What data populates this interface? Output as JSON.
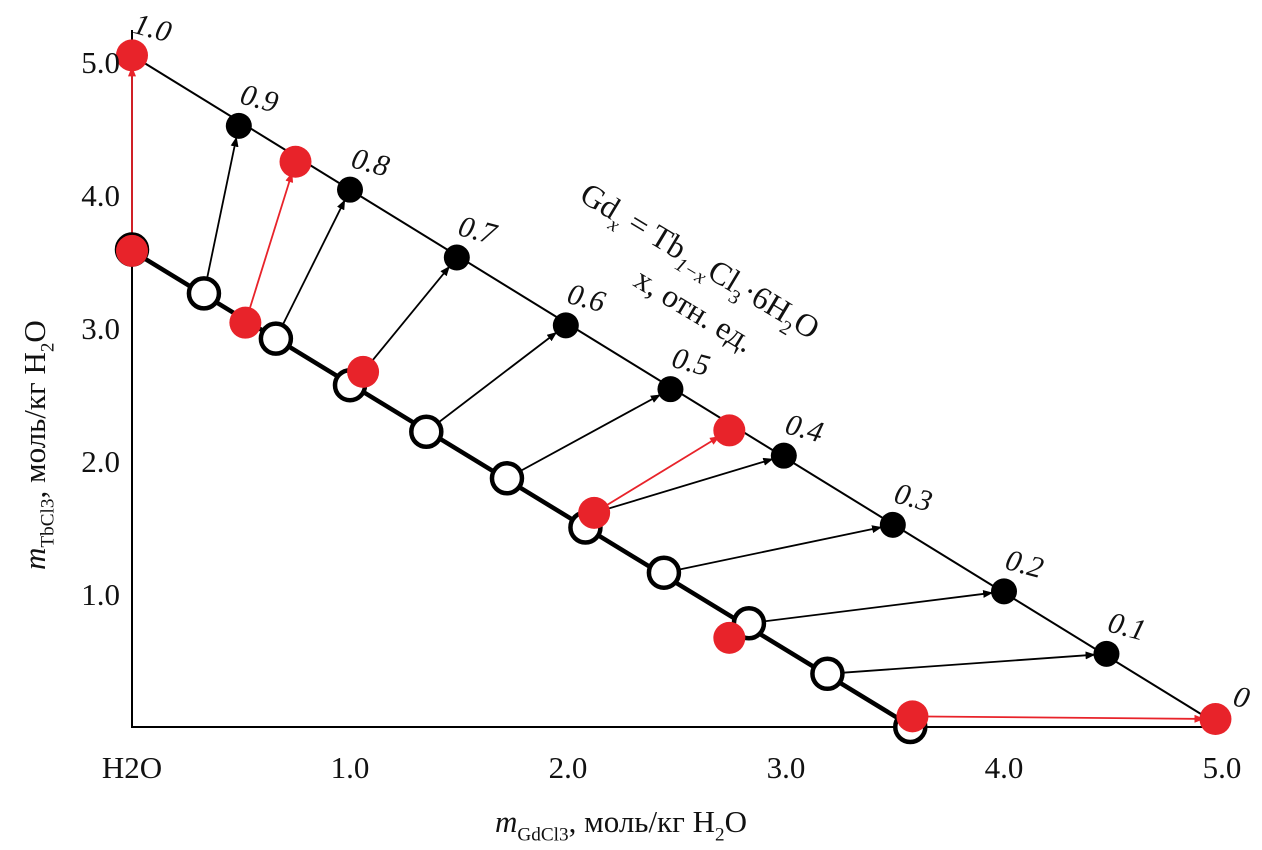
{
  "chart_data": {
    "type": "scatter",
    "title": "",
    "xlabel_parts": [
      [
        "m",
        "i"
      ],
      [
        "GdCl",
        "sub"
      ],
      [
        "3",
        "sub2"
      ],
      [
        ", моль/кг H",
        "n"
      ],
      [
        "2",
        "sub"
      ],
      [
        "O",
        "n"
      ]
    ],
    "ylabel_parts": [
      [
        "m",
        "i"
      ],
      [
        "TbCl",
        "sub"
      ],
      [
        "3",
        "sub2"
      ],
      [
        ", моль/кг H",
        "n"
      ],
      [
        "2",
        "sub"
      ],
      [
        "O",
        "n"
      ]
    ],
    "xlim": [
      0,
      5.0
    ],
    "ylim": [
      0,
      5.0
    ],
    "x_ticks": [
      {
        "v": 0,
        "label": "H2O",
        "parts": [
          [
            "H",
            "n"
          ],
          [
            "2",
            "sub"
          ],
          [
            "O",
            "n"
          ]
        ]
      },
      {
        "v": 1,
        "label": "1.0"
      },
      {
        "v": 2,
        "label": "2.0"
      },
      {
        "v": 3,
        "label": "3.0"
      },
      {
        "v": 4,
        "label": "4.0"
      },
      {
        "v": 5,
        "label": "5.0"
      }
    ],
    "y_ticks": [
      {
        "v": 1,
        "label": "1.0"
      },
      {
        "v": 2,
        "label": "2.0"
      },
      {
        "v": 3,
        "label": "3.0"
      },
      {
        "v": 4,
        "label": "4.0"
      },
      {
        "v": 5,
        "label": "5.0"
      }
    ],
    "grid": false,
    "annotation": {
      "line1_parts": [
        [
          "Gd",
          "n"
        ],
        [
          "x",
          "subi"
        ],
        [
          " = Tb",
          "n"
        ],
        [
          "1−x",
          "subi"
        ],
        [
          "Cl",
          "n"
        ],
        [
          "3",
          "sub"
        ],
        [
          "·6H",
          "n"
        ],
        [
          "2",
          "sub"
        ],
        [
          "O",
          "n"
        ]
      ],
      "line2": "x, отн. ед."
    },
    "lines": [
      {
        "name": "upper-line",
        "color": "#000000",
        "width": "thin",
        "points": [
          [
            0,
            5.05
          ],
          [
            5.0,
            0.0
          ]
        ]
      },
      {
        "name": "lower-line",
        "color": "#000000",
        "width": "thick",
        "points": [
          [
            0,
            3.58
          ],
          [
            3.58,
            0.0
          ]
        ]
      }
    ],
    "series": [
      {
        "name": "solid-black",
        "style": "filled",
        "color": "#000000",
        "points": [
          {
            "x": 0.49,
            "y": 4.52,
            "label": "0.9"
          },
          {
            "x": 1.0,
            "y": 4.04,
            "label": "0.8"
          },
          {
            "x": 1.49,
            "y": 3.53,
            "label": "0.7"
          },
          {
            "x": 1.99,
            "y": 3.02,
            "label": "0.6"
          },
          {
            "x": 2.47,
            "y": 2.54,
            "label": "0.5"
          },
          {
            "x": 2.99,
            "y": 2.04,
            "label": "0.4"
          },
          {
            "x": 3.49,
            "y": 1.52,
            "label": "0.3"
          },
          {
            "x": 4.0,
            "y": 1.02,
            "label": "0.2"
          },
          {
            "x": 4.47,
            "y": 0.55,
            "label": "0.1"
          }
        ]
      },
      {
        "name": "open-black",
        "style": "open",
        "color": "#000000",
        "points": [
          {
            "x": 0.0,
            "y": 3.59
          },
          {
            "x": 0.33,
            "y": 3.26
          },
          {
            "x": 0.66,
            "y": 2.92
          },
          {
            "x": 1.0,
            "y": 2.57
          },
          {
            "x": 1.35,
            "y": 2.22
          },
          {
            "x": 1.72,
            "y": 1.87
          },
          {
            "x": 2.08,
            "y": 1.5
          },
          {
            "x": 2.44,
            "y": 1.16
          },
          {
            "x": 2.83,
            "y": 0.78
          },
          {
            "x": 3.19,
            "y": 0.4
          },
          {
            "x": 3.57,
            "y": 0.0
          }
        ]
      },
      {
        "name": "red-upper",
        "style": "filled",
        "color": "#e8232a",
        "points": [
          {
            "x": 0.0,
            "y": 5.05,
            "label": "1.0"
          },
          {
            "x": 0.75,
            "y": 4.25
          },
          {
            "x": 2.74,
            "y": 2.23
          },
          {
            "x": 4.97,
            "y": 0.06,
            "label": "0"
          }
        ]
      },
      {
        "name": "red-lower",
        "style": "filled",
        "color": "#e8232a",
        "points": [
          {
            "x": 0.0,
            "y": 3.58
          },
          {
            "x": 0.52,
            "y": 3.04
          },
          {
            "x": 1.06,
            "y": 2.67
          },
          {
            "x": 2.12,
            "y": 1.61
          },
          {
            "x": 2.74,
            "y": 0.67
          },
          {
            "x": 3.58,
            "y": 0.08
          }
        ]
      }
    ],
    "arrows": [
      {
        "color": "#000000",
        "from": [
          0.33,
          3.26
        ],
        "to": [
          0.49,
          4.52
        ]
      },
      {
        "color": "#000000",
        "from": [
          0.66,
          2.92
        ],
        "to": [
          1.0,
          4.04
        ]
      },
      {
        "color": "#000000",
        "from": [
          1.06,
          2.67
        ],
        "to": [
          1.49,
          3.53
        ]
      },
      {
        "color": "#000000",
        "from": [
          1.35,
          2.22
        ],
        "to": [
          1.99,
          3.02
        ]
      },
      {
        "color": "#000000",
        "from": [
          1.72,
          1.87
        ],
        "to": [
          2.47,
          2.54
        ]
      },
      {
        "color": "#000000",
        "from": [
          2.12,
          1.61
        ],
        "to": [
          2.99,
          2.04
        ]
      },
      {
        "color": "#000000",
        "from": [
          2.44,
          1.16
        ],
        "to": [
          3.49,
          1.52
        ]
      },
      {
        "color": "#000000",
        "from": [
          2.83,
          0.78
        ],
        "to": [
          4.0,
          1.02
        ]
      },
      {
        "color": "#000000",
        "from": [
          3.19,
          0.4
        ],
        "to": [
          4.47,
          0.55
        ]
      },
      {
        "color": "#e8232a",
        "from": [
          0.0,
          3.58
        ],
        "to": [
          0.0,
          5.05
        ]
      },
      {
        "color": "#e8232a",
        "from": [
          0.52,
          3.04
        ],
        "to": [
          0.75,
          4.25
        ]
      },
      {
        "color": "#e8232a",
        "from": [
          2.12,
          1.61
        ],
        "to": [
          2.74,
          2.23
        ]
      },
      {
        "color": "#e8232a",
        "from": [
          3.58,
          0.08
        ],
        "to": [
          4.97,
          0.06
        ]
      }
    ]
  }
}
